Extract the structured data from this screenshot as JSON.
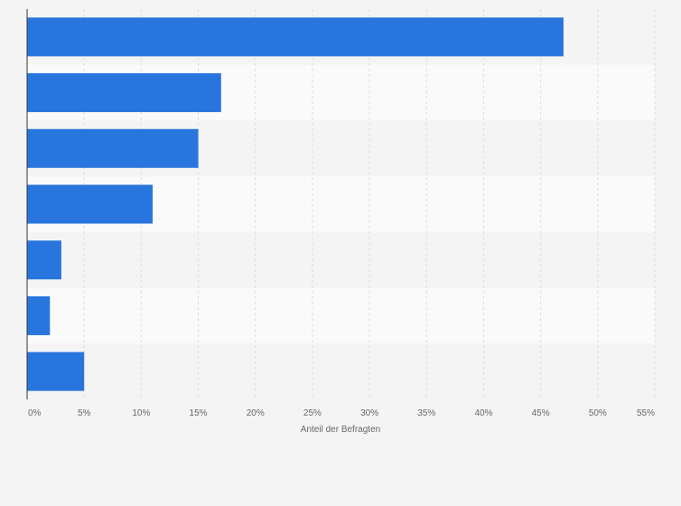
{
  "chart_data": {
    "type": "bar",
    "orientation": "horizontal",
    "categories": [
      "",
      "",
      "",
      "",
      "",
      "",
      ""
    ],
    "values": [
      47,
      17,
      15,
      11,
      3,
      2,
      5
    ],
    "unit": "%",
    "xlabel": "Anteil der Befragten",
    "xlim": [
      0,
      55
    ],
    "ticks": [
      0,
      5,
      10,
      15,
      20,
      25,
      30,
      35,
      40,
      45,
      50,
      55
    ],
    "tick_labels": [
      "0%",
      "5%",
      "10%",
      "15%",
      "20%",
      "25%",
      "30%",
      "35%",
      "40%",
      "45%",
      "50%",
      "55%"
    ],
    "grid": true,
    "colors": {
      "bar": "#2876dd",
      "grid": "#dddddd",
      "band_light": "#fafafa",
      "band_dark": "#f4f4f4",
      "axis": "#333333"
    }
  }
}
